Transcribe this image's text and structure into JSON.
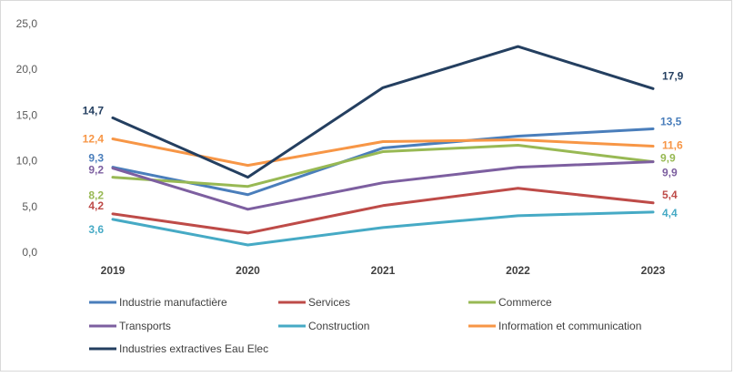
{
  "chart_data": {
    "type": "line",
    "title": "",
    "xlabel": "",
    "ylabel": "",
    "x": [
      "2019",
      "2020",
      "2021",
      "2022",
      "2023"
    ],
    "ylim": [
      0,
      25
    ],
    "yticks": [
      "0,0",
      "5,0",
      "10,0",
      "15,0",
      "20,0",
      "25,0"
    ],
    "grid": false,
    "legend_position": "bottom",
    "series": [
      {
        "name": "Industrie manufactière",
        "color": "#4a7ebb",
        "values": [
          9.3,
          6.3,
          11.4,
          12.7,
          13.5
        ],
        "labels": [
          {
            "index": 0,
            "text": "9,3"
          },
          {
            "index": 4,
            "text": "13,5"
          }
        ]
      },
      {
        "name": "Services",
        "color": "#be4b48",
        "values": [
          4.2,
          2.1,
          5.1,
          7.0,
          5.4
        ],
        "labels": [
          {
            "index": 0,
            "text": "4,2"
          },
          {
            "index": 4,
            "text": "5,4"
          }
        ]
      },
      {
        "name": "Commerce",
        "color": "#98b954",
        "values": [
          8.2,
          7.2,
          11.0,
          11.7,
          9.9
        ],
        "labels": [
          {
            "index": 0,
            "text": "8,2"
          },
          {
            "index": 4,
            "text": "9,9"
          }
        ]
      },
      {
        "name": "Transports",
        "color": "#7d5fa0",
        "values": [
          9.2,
          4.7,
          7.6,
          9.3,
          9.9
        ],
        "labels": [
          {
            "index": 0,
            "text": "9,2"
          },
          {
            "index": 4,
            "text": "9,9"
          }
        ]
      },
      {
        "name": "Construction",
        "color": "#46aac5",
        "values": [
          3.6,
          0.8,
          2.7,
          4.0,
          4.4
        ],
        "labels": [
          {
            "index": 0,
            "text": "3,6"
          },
          {
            "index": 4,
            "text": "4,4"
          }
        ]
      },
      {
        "name": "Information et communication",
        "color": "#f79646",
        "values": [
          12.4,
          9.5,
          12.1,
          12.3,
          11.6
        ],
        "labels": [
          {
            "index": 0,
            "text": "12,4"
          },
          {
            "index": 4,
            "text": "11,6"
          }
        ]
      },
      {
        "name": "Industries extractives Eau Elec",
        "color": "#243f60",
        "values": [
          14.7,
          8.2,
          18.0,
          22.5,
          17.9
        ],
        "labels": [
          {
            "index": 0,
            "text": "14,7"
          },
          {
            "index": 4,
            "text": "17,9"
          }
        ]
      }
    ]
  }
}
